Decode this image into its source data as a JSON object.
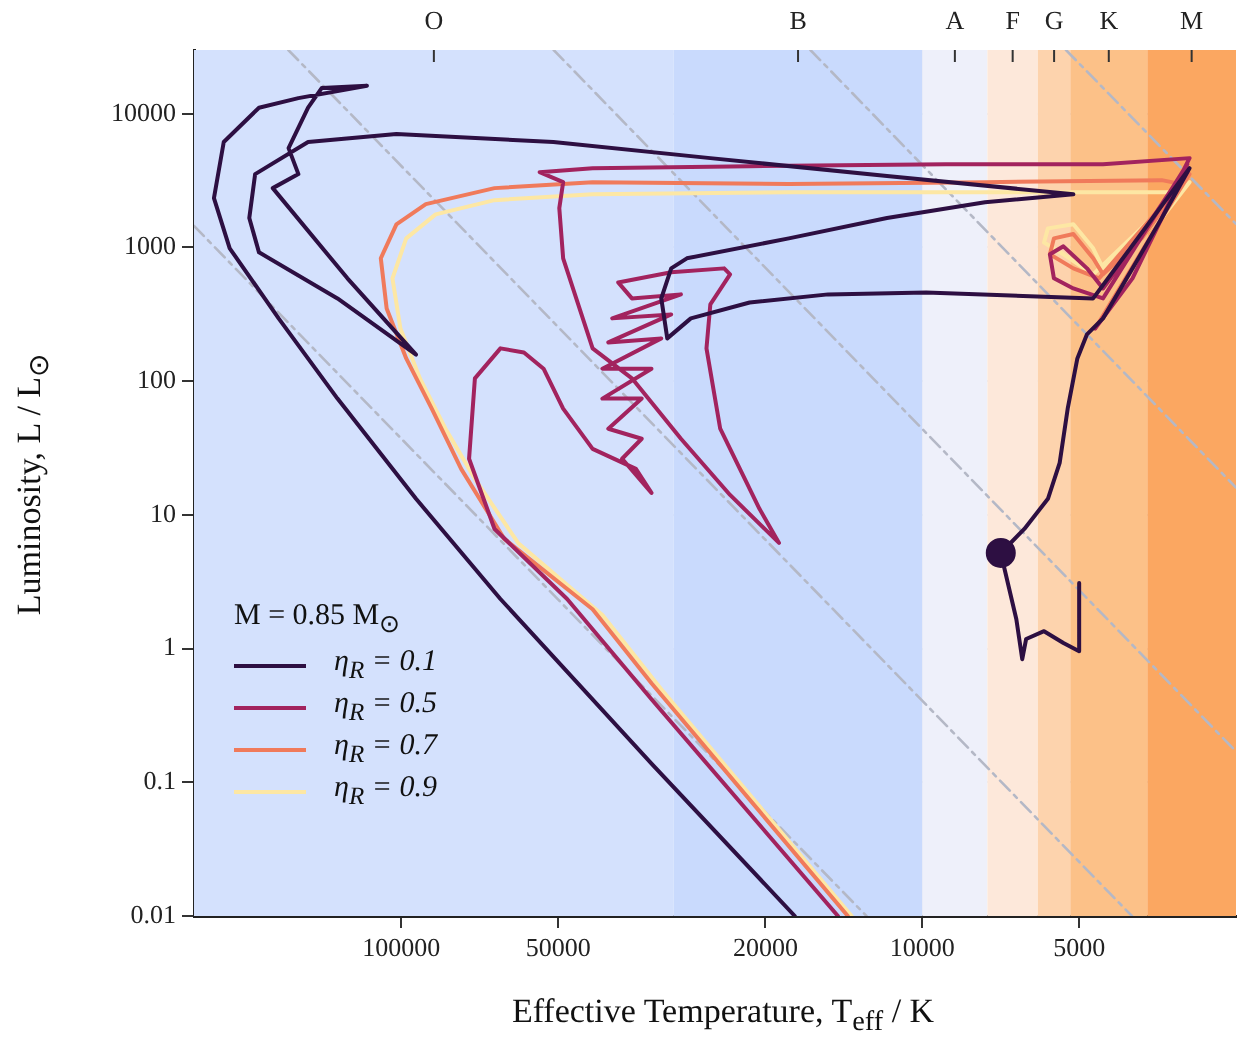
{
  "chart_data": {
    "type": "line",
    "xlabel": "Effective Temperature, T$_{eff}$ / K",
    "ylabel": "Luminosity, L / L$_{⊙}$",
    "legend_title": "M = 0.85 M$_{⊙}$",
    "log": "xy",
    "xlim": [
      250000,
      2500
    ],
    "ylim": [
      0.01,
      30000
    ],
    "xticks": [
      100000,
      50000,
      20000,
      10000,
      5000
    ],
    "yticks": [
      0.01,
      0.1,
      1,
      10,
      100,
      1000,
      10000
    ],
    "grid": true,
    "legend": "bottom left",
    "marker": "none",
    "line_style": "solid",
    "bands": [
      {
        "axis": "x",
        "from": 250000,
        "to": 30000,
        "color": "#d4e1fd",
        "label": "O"
      },
      {
        "axis": "x",
        "from": 30000,
        "to": 10000,
        "color": "#c9dafd",
        "label": "B"
      },
      {
        "axis": "x",
        "from": 10000,
        "to": 7500,
        "color": "#eef0fa",
        "label": "A"
      },
      {
        "axis": "x",
        "from": 7500,
        "to": 6000,
        "color": "#fde8da",
        "label": "F"
      },
      {
        "axis": "x",
        "from": 6000,
        "to": 5200,
        "color": "#fdd3ad",
        "label": "G"
      },
      {
        "axis": "x",
        "from": 5200,
        "to": 3700,
        "color": "#fcc188",
        "label": "K"
      },
      {
        "axis": "x",
        "from": 3700,
        "to": 2500,
        "color": "#fba761",
        "label": "M"
      }
    ],
    "series": [
      {
        "type": "scatter",
        "marker": "circle",
        "color": "#2d0f42",
        "x": [
          7070
        ],
        "values": [
          5.19
        ]
      },
      {
        "name": "η$_{R}$ = 0.1",
        "color": "#2d0f42",
        "x": [
          5000,
          5000,
          5360,
          5840,
          6320,
          6430,
          6600,
          7070,
          6370,
          5740,
          5450,
          5260,
          5040,
          4830,
          4500,
          3950,
          3470,
          3070,
          4700,
          9830,
          15160,
          21450,
          27820,
          30870,
          31700,
          30340,
          28310,
          18040,
          11690,
          7580,
          5130,
          11690,
          25520,
          51070,
          102200,
          151000,
          190800,
          195800,
          187600,
          132600,
          93710,
          126900,
          176500,
          157600,
          164600,
          151000,
          142100,
          116400,
          157600,
          187600,
          219200,
          228900,
          213500,
          172000,
          132600,
          93710,
          64530,
          33100,
          17570
        ],
        "values": [
          3.09,
          0.956,
          1.1,
          1.35,
          1.18,
          0.833,
          1.66,
          5.19,
          7.85,
          13.2,
          24.5,
          62.3,
          148,
          224,
          295,
          698,
          1660,
          3920,
          416,
          461,
          446,
          388,
          295,
          209,
          416,
          698,
          830,
          1170,
          1660,
          2180,
          2500,
          3420,
          4660,
          6150,
          7060,
          6150,
          3540,
          1660,
          920,
          416,
          158,
          588,
          2780,
          3540,
          5540,
          11100,
          15600,
          16200,
          13100,
          11100,
          6150,
          2340,
          986,
          295,
          74.1,
          13.2,
          2.35,
          0.138,
          0.01
        ]
      },
      {
        "name": "η$_{R}$ = 0.5",
        "color": "#a2235e",
        "x": [
          4660,
          3950,
          3470,
          3100,
          4500,
          5130,
          5590,
          5690,
          5360,
          4830,
          4500,
          3950,
          3180,
          3070,
          4500,
          9010,
          21450,
          42940,
          54270,
          48910,
          49750,
          48910,
          42940,
          36090,
          29060,
          23390,
          18840,
          20540,
          24430,
          25960,
          25520,
          23390,
          24010,
          30340,
          38350,
          36090,
          29060,
          39370,
          30340,
          40060,
          31700,
          41120,
          33100,
          41120,
          34560,
          40060,
          34560,
          37690,
          33100,
          35460,
          42940,
          48910,
          53330,
          58170,
          64530,
          72240,
          74130,
          66240,
          48060,
          33100,
          14520
        ],
        "values": [
          248,
          588,
          1660,
          4200,
          416,
          494,
          588,
          889,
          1020,
          698,
          494,
          986,
          3540,
          4660,
          4200,
          4200,
          4060,
          3920,
          3660,
          3080,
          1970,
          830,
          176,
          105,
          37.1,
          14.1,
          6.17,
          11.1,
          44.1,
          176,
          375,
          630,
          698,
          652,
          548,
          416,
          446,
          295,
          316,
          195,
          209,
          124,
          124,
          74.1,
          74.1,
          44.1,
          37.1,
          26.3,
          14.6,
          22.1,
          31.2,
          62.3,
          124,
          164,
          176,
          105,
          26.3,
          7.85,
          2.35,
          0.418,
          0.01
        ]
      },
      {
        "name": "η$_{R}$ = 0.7",
        "color": "#f07a5b",
        "x": [
          4660,
          3470,
          3070,
          4580,
          5130,
          5690,
          5590,
          5130,
          4700,
          4500,
          3790,
          3180,
          3470,
          7580,
          18040,
          42940,
          66240,
          89730,
          102200,
          109500,
          106700,
          97860,
          87420,
          76770,
          63420,
          42940,
          33100,
          13900
        ],
        "values": [
          248,
          1660,
          3540,
          588,
          698,
          889,
          1170,
          1260,
          830,
          630,
          1170,
          2980,
          3190,
          3080,
          2980,
          3080,
          2780,
          2110,
          1490,
          830,
          350,
          148,
          62.3,
          22.1,
          6.61,
          1.97,
          0.55,
          0.01
        ]
      },
      {
        "name": "η$_{R}$ = 0.9",
        "color": "#fde7a4",
        "x": [
          4660,
          3470,
          3070,
          4700,
          5360,
          5840,
          5740,
          5130,
          4700,
          4500,
          3790,
          3240,
          7580,
          18040,
          42940,
          66240,
          85930,
          97860,
          104000,
          100400,
          92100,
          82270,
          72240,
          59690,
          41120,
          31700,
          13670
        ],
        "values": [
          248,
          1660,
          3080,
          630,
          889,
          1090,
          1390,
          1490,
          986,
          698,
          1170,
          2590,
          2590,
          2590,
          2500,
          2260,
          1770,
          1170,
          588,
          248,
          105,
          44.1,
          18.6,
          6.17,
          1.78,
          0.496,
          0.01
        ]
      },
      {
        "color": "#b4b8c6",
        "line_style": "dashed",
        "x": [
          250000,
          12800
        ],
        "values": [
          1450,
          0.01
        ]
      },
      {
        "color": "#b4b8c6",
        "line_style": "dashed",
        "x": [
          164800,
          3960
        ],
        "values": [
          30000,
          0.01
        ]
      },
      {
        "color": "#b4b8c6",
        "line_style": "dashed",
        "x": [
          51000,
          2500
        ],
        "values": [
          30000,
          0.17
        ]
      },
      {
        "color": "#b4b8c6",
        "line_style": "dashed",
        "x": [
          16400,
          2500
        ],
        "values": [
          30000,
          16
        ]
      },
      {
        "color": "#b4b8c6",
        "line_style": "dashed",
        "x": [
          5300,
          2500
        ],
        "values": [
          30000,
          1500
        ]
      }
    ]
  }
}
